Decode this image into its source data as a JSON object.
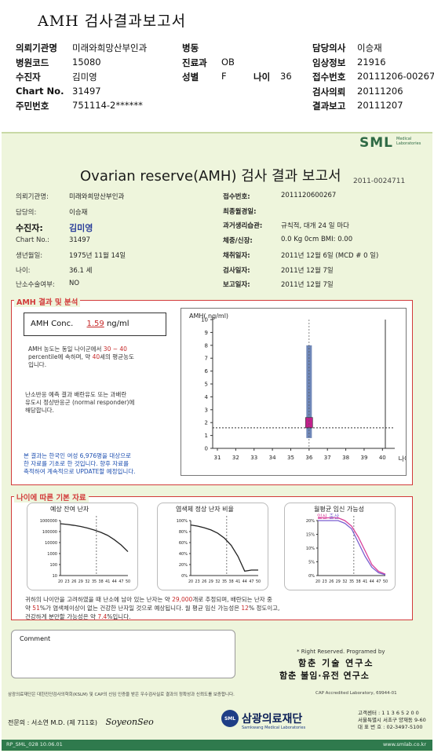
{
  "top": {
    "title": "AMH 검사결과보고서",
    "rows": [
      {
        "l1": "의뢰기관명",
        "v1": "미래와희망산부인과",
        "l2": "병동",
        "v2": "",
        "l3": "담당의사",
        "v3": "이승재"
      },
      {
        "l1": "병원코드",
        "v1": "15080",
        "l2": "진료과",
        "v2": "OB",
        "l3": "임상정보",
        "v3": "21916"
      },
      {
        "l1": "수진자",
        "v1": "김미영",
        "l2": "성별",
        "v2": "F",
        "l2b": "나이",
        "v2b": "36",
        "l3": "접수번호",
        "v3": "20111206-00267"
      },
      {
        "l1": "Chart No.",
        "v1": "31497",
        "l2": "",
        "v2": "",
        "l3": "검사의뢰",
        "v3": "20111206"
      },
      {
        "l1": "주민번호",
        "v1": "751114-2******",
        "l2": "",
        "v2": "",
        "l3": "결과보고",
        "v3": "20111207"
      }
    ]
  },
  "report": {
    "logo": "SML",
    "logo_sub": "Medical Laboratories",
    "title": "Ovarian reserve(AMH) 검사 결과 보고서",
    "report_no": "2011-0024711",
    "left": [
      {
        "label": "의뢰기관명:",
        "value": "미래와희망산부인과"
      },
      {
        "label": "담당의:",
        "value": "이승재"
      },
      {
        "label": "수진자:",
        "value": "김미영"
      },
      {
        "label": "Chart No.:",
        "value": "31497"
      },
      {
        "label": "생년월일:",
        "value": "1975년 11월 14일"
      },
      {
        "label": "나이:",
        "value": "36.1 세"
      },
      {
        "label": "난소수술여부:",
        "value": "NO"
      }
    ],
    "right": [
      {
        "label": "접수번호:",
        "value": "2011120600267"
      },
      {
        "label": "최종월경일:",
        "value": ""
      },
      {
        "label": "과거생리습관:",
        "value": "규칙적, 대개  24 일 마다"
      },
      {
        "label": "체중/신장:",
        "value": "0.0 Kg       0cm    BMI:   0.00"
      },
      {
        "label": "채취일자:",
        "value": "2011년 12월 6일   (MCD # 0 일)"
      },
      {
        "label": "검사일자:",
        "value": "2011년 12월 7일"
      },
      {
        "label": "보고일자:",
        "value": "2011년 12월 7일"
      }
    ],
    "section1_title": "AMH 결과 및 분석",
    "amh_label": "AMH Conc.",
    "amh_value": "1.59",
    "amh_unit": "ng/ml",
    "para1": [
      "AMH 농도는 동일 나이군에서",
      "30 ~ 40",
      "percentile에 속하며, 약",
      "40",
      "세의 평균농도",
      "입니다."
    ],
    "para2": [
      "난소반응 예측 결과 배란유도 또는 과배란",
      "유도시 정상반응군 (normal responder)에",
      "해당합니다."
    ],
    "para3": [
      "본 결과는 한국인 여성 6,976명을 대상으로",
      "한 자료를 기초로 한 것입니다. 향후 자료를",
      "축적하여 계속적으로 UPDATE할 예정입니다."
    ],
    "section2_title": "나이에 따른 기본 자료",
    "mini1_title": "예상 잔여 난자",
    "mini2_title": "염색체 정상 난자 비율",
    "mini3_title": "월평균 임신 가능성",
    "mini3_legend": [
      "임신",
      "출산"
    ],
    "summary": [
      "귀하의 나이만을 고려하였을 때 난소에 남아 있는 난자는 약",
      "29,000",
      "개로 추정되며, 배란되는 난자 중",
      "약",
      "51",
      "%가 염색체이상이 없는 건강한 난자일 것으로 예상됩니다. 월 평균 임신 가능성은",
      "12",
      "% 정도이고,",
      "건강하게 분만할 가능성은 약",
      "7.4",
      "%입니다."
    ],
    "comment_label": "Comment",
    "rights": "* Right Reserved. Programed by",
    "lab1": "함춘 기술 연구소",
    "lab2": "함춘 불임·유전 연구소",
    "footnote": "삼광의료재단은 대한진단검사의학회(KSLM) 및 CAP의 신임 인증을 받은 우수검사실로 결과의 정확성과 신뢰도를 보증합니다.",
    "cap": "CAP Accredited Laboratory, 69944-01",
    "director_label": "전문의 : 서소연 M.D. (제 711호)",
    "signature": "SoyeonSeo",
    "corp_logo": "SML",
    "corp_name": "삼광의료재단",
    "corp_sub": "Samkwang Medical Laboratories",
    "contact": [
      "고객센터 : 1 1 3 6 5 2 0 0",
      "서울특별시 서초구 양재동 9-60",
      "대 표 번 호 : 02-3497-5100"
    ],
    "form_code": "RP_SML_028  10.06.01",
    "web": "www.smlab.co.kr"
  },
  "chart_data": [
    {
      "type": "bar",
      "title": "AMH( ng/ml)",
      "xlabel": "나이",
      "ylabel": "AMH( ng/ml)",
      "x_ticks": [
        "31",
        "32",
        "33",
        "34",
        "35",
        "36",
        "37",
        "38",
        "39",
        "40"
      ],
      "ylim": [
        0,
        10
      ],
      "y_ticks": [
        0,
        1,
        2,
        3,
        4,
        5,
        6,
        7,
        8,
        9,
        10
      ],
      "bar": {
        "x": "36",
        "low": 0.8,
        "high": 8.0,
        "color": "#6f87b8"
      },
      "marker": {
        "x": "36",
        "low": 1.59,
        "high": 2.4,
        "color": "#c0208a"
      },
      "value_line": 1.59,
      "age_line": "36"
    },
    {
      "type": "line",
      "title": "예상 잔여 난자",
      "x": [
        20,
        23,
        26,
        29,
        32,
        35,
        38,
        41,
        44,
        47,
        50
      ],
      "y_ticks": [
        "1000000",
        "100000",
        "10000",
        "1000",
        "100",
        "10"
      ],
      "log_scale": true,
      "values": [
        520000,
        450000,
        370000,
        290000,
        210000,
        140000,
        85000,
        45000,
        18000,
        6000,
        1500
      ],
      "age_line": 36
    },
    {
      "type": "line",
      "title": "염색체 정상 난자 비율",
      "x": [
        20,
        23,
        26,
        29,
        32,
        35,
        38,
        41,
        44,
        47,
        50
      ],
      "y_ticks": [
        "100%",
        "80%",
        "60%",
        "40%",
        "20%",
        "0%"
      ],
      "values": [
        92,
        90,
        87,
        83,
        77,
        68,
        55,
        35,
        8,
        10,
        10
      ],
      "age_line": 36
    },
    {
      "type": "line",
      "title": "월평균 임신 가능성",
      "x": [
        20,
        23,
        26,
        29,
        32,
        35,
        38,
        41,
        44,
        47,
        50
      ],
      "y_ticks": [
        "20%",
        "15%",
        "10%",
        "5%",
        "0%"
      ],
      "series": [
        {
          "name": "임신",
          "values": [
            21,
            21,
            21,
            21,
            20,
            18,
            14,
            9,
            4,
            1.5,
            0.5
          ],
          "color": "#d8409a"
        },
        {
          "name": "출산",
          "values": [
            20,
            20,
            20,
            20,
            19,
            17,
            12,
            7,
            3,
            1,
            0.3
          ],
          "color": "#7a5fd0"
        }
      ],
      "age_line": 36
    }
  ]
}
